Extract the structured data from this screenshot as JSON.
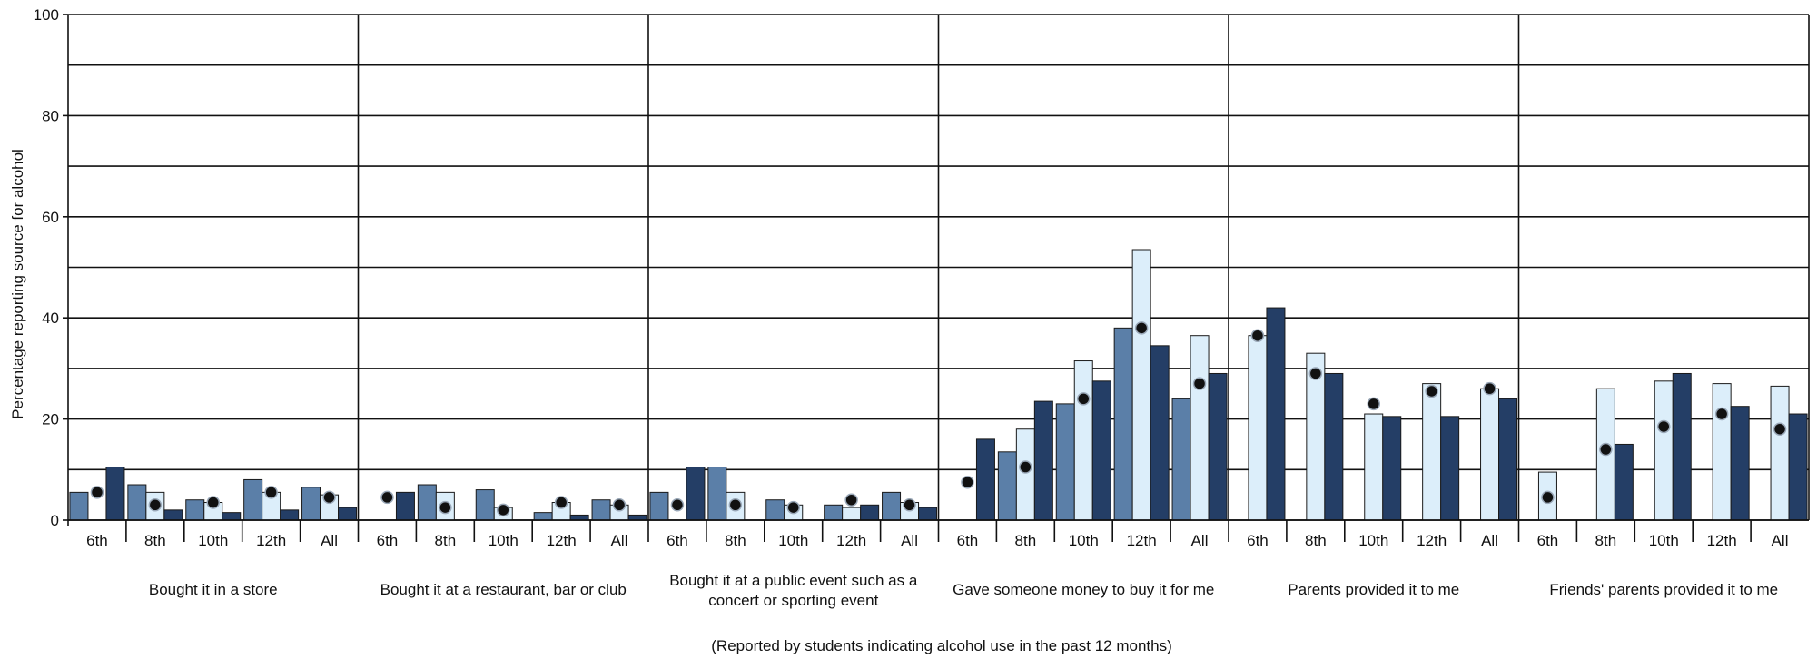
{
  "chart_data": {
    "type": "bar",
    "title": "",
    "ylabel": "Percentage reporting source for alcohol",
    "xlabel": "(Reported by students indicating alcohol use in the past 12 months)",
    "ylim": [
      0,
      100
    ],
    "yticks": [
      0,
      20,
      40,
      60,
      80,
      100
    ],
    "grid": true,
    "grades": [
      "6th",
      "8th",
      "10th",
      "12th",
      "All"
    ],
    "colors": [
      "#5b7fa8",
      "#dceefa",
      "#243e66"
    ],
    "dot_color": "#111111",
    "groups": [
      {
        "label": [
          "Bought it in a store"
        ],
        "series_values": [
          [
            5.5,
            7,
            4,
            8,
            6.5
          ],
          [
            0,
            5.5,
            3.5,
            5.5,
            5
          ],
          [
            10.5,
            2,
            1.5,
            2,
            2.5
          ]
        ],
        "dots": [
          5.5,
          3,
          3.5,
          5.5,
          4.5
        ]
      },
      {
        "label": [
          "Bought it at a restaurant, bar or club"
        ],
        "series_values": [
          [
            0,
            7,
            6,
            1.5,
            4
          ],
          [
            0,
            5.5,
            2.5,
            3.5,
            3
          ],
          [
            5.5,
            0,
            0,
            1,
            1
          ]
        ],
        "dots": [
          4.5,
          2.5,
          2,
          3.5,
          3
        ]
      },
      {
        "label": [
          "Bought it at a public event such as a",
          "concert or sporting event"
        ],
        "series_values": [
          [
            5.5,
            10.5,
            4,
            3,
            5.5
          ],
          [
            0,
            5.5,
            3,
            2.5,
            3.5
          ],
          [
            10.5,
            0,
            0,
            3,
            2.5
          ]
        ],
        "dots": [
          3,
          3,
          2.5,
          4,
          3
        ]
      },
      {
        "label": [
          "Gave someone money to buy it for me"
        ],
        "series_values": [
          [
            0,
            13.5,
            23,
            38,
            24
          ],
          [
            0,
            18,
            31.5,
            53.5,
            36.5
          ],
          [
            16,
            23.5,
            27.5,
            34.5,
            29
          ]
        ],
        "dots": [
          7.5,
          10.5,
          24,
          38,
          27
        ]
      },
      {
        "label": [
          "Parents provided it to me"
        ],
        "series_values": [
          [
            0,
            0,
            0,
            0,
            0
          ],
          [
            36.5,
            33,
            21,
            27,
            26
          ],
          [
            42,
            29,
            20.5,
            20.5,
            24
          ]
        ],
        "dots": [
          36.5,
          29,
          23,
          25.5,
          26
        ]
      },
      {
        "label": [
          "Friends' parents provided it to me"
        ],
        "series_values": [
          [
            0,
            0,
            0,
            0,
            0
          ],
          [
            9.5,
            26,
            27.5,
            27,
            26.5
          ],
          [
            0,
            15,
            29,
            22.5,
            21
          ]
        ],
        "dots": [
          4.5,
          14,
          18.5,
          21,
          18
        ]
      }
    ]
  }
}
